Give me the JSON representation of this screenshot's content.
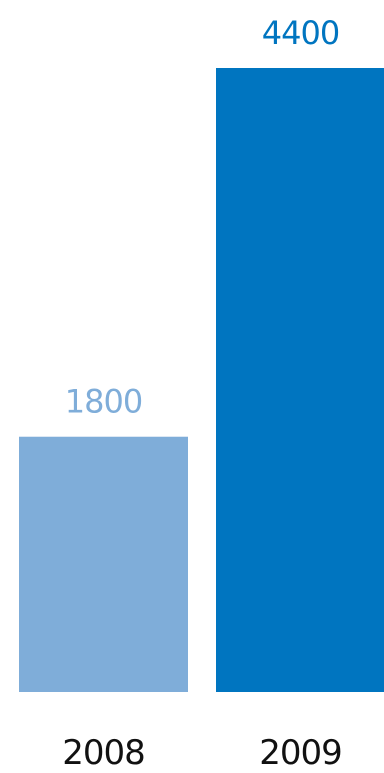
{
  "chart_data": {
    "type": "bar",
    "categories": [
      "2008",
      "2009"
    ],
    "values": [
      1800,
      4400
    ],
    "value_labels": [
      "1800",
      "4400"
    ],
    "bar_colors": [
      "#7fadd9",
      "#0075c0"
    ],
    "label_colors": [
      "#7fadd9",
      "#0075c0"
    ],
    "ylim": [
      0,
      4400
    ],
    "grid": false,
    "legend": "none"
  }
}
